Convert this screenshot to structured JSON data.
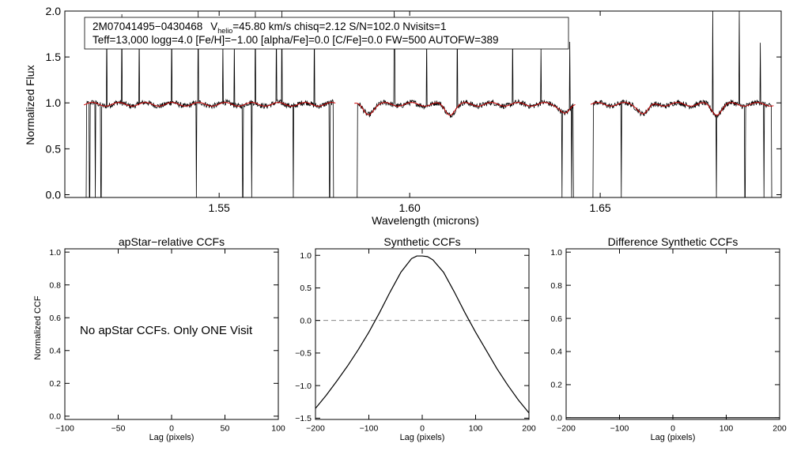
{
  "chart_data": [
    {
      "type": "line",
      "title": "",
      "xlabel": "Wavelength (microns)",
      "ylabel": "Normalized Flux",
      "xlim": [
        1.5095,
        1.6975
      ],
      "ylim": [
        -0.03,
        2.0
      ],
      "x_ticks": [
        1.55,
        1.6,
        1.65
      ],
      "x_tick_labels": [
        "1.55",
        "1.60",
        "1.65"
      ],
      "y_ticks": [
        0.0,
        0.5,
        1.0,
        1.5,
        2.0
      ],
      "y_tick_labels": [
        "0.0",
        "0.5",
        "1.0",
        "1.5",
        "2.0"
      ],
      "chip_ranges": [
        [
          1.5145,
          1.5805
        ],
        [
          1.5855,
          1.6435
        ],
        [
          1.6475,
          1.6955
        ]
      ],
      "series": [
        {
          "name": "observed spectrum",
          "color": "#000000",
          "baseline": 0.98
        },
        {
          "name": "synthetic model",
          "color": "#cc0000",
          "baseline": 0.985
        }
      ],
      "annotation": {
        "star_id": "2M07041495−0430468",
        "v_prefix": "V",
        "v_sub": "helio",
        "v_rest": "=45.80 km/s  chisq=2.12  S/N=102.0  Nvisits=1",
        "line2": "Teff=13,000 logg=4.0 [Fe/H]=−1.00 [alpha/Fe]=0.0 [C/Fe]=0.0 FW=500 AUTOFW=389"
      }
    },
    {
      "type": "line",
      "title": "apStar−relative CCFs",
      "xlabel": "Lag (pixels)",
      "ylabel": "Normalized CCF",
      "xlim": [
        -100,
        100
      ],
      "ylim": [
        -0.02,
        1.02
      ],
      "x_ticks": [
        -100,
        -50,
        0,
        50,
        100
      ],
      "x_tick_labels": [
        "−100",
        "−50",
        "0",
        "50",
        "100"
      ],
      "y_ticks": [
        0.0,
        0.2,
        0.4,
        0.6,
        0.8,
        1.0
      ],
      "y_tick_labels": [
        "0.0",
        "0.2",
        "0.4",
        "0.6",
        "0.8",
        "1.0"
      ],
      "message": "No apStar CCFs.  Only ONE Visit",
      "series": []
    },
    {
      "type": "line",
      "title": "Synthetic CCFs",
      "xlabel": "Lag (pixels)",
      "ylabel": "",
      "xlim": [
        -200,
        200
      ],
      "ylim": [
        -1.52,
        1.1
      ],
      "x_ticks": [
        -200,
        -100,
        0,
        100,
        200
      ],
      "x_tick_labels": [
        "−200",
        "−100",
        "0",
        "100",
        "200"
      ],
      "y_ticks": [
        -1.5,
        -1.0,
        -0.5,
        0.0,
        0.5,
        1.0
      ],
      "y_tick_labels": [
        "−1.5",
        "−1.0",
        "−0.5",
        "0.0",
        "0.5",
        "1.0"
      ],
      "zero_line": 0.0,
      "series": [
        {
          "name": "synthetic CCF",
          "color": "#000000",
          "x": [
            -200,
            -180,
            -160,
            -140,
            -120,
            -100,
            -80,
            -60,
            -40,
            -20,
            -10,
            0,
            10,
            20,
            40,
            60,
            80,
            100,
            120,
            140,
            160,
            180,
            200
          ],
          "y": [
            -1.35,
            -1.15,
            -0.93,
            -0.7,
            -0.45,
            -0.18,
            0.12,
            0.44,
            0.74,
            0.95,
            0.99,
            0.99,
            0.98,
            0.93,
            0.74,
            0.44,
            0.12,
            -0.18,
            -0.46,
            -0.74,
            -0.99,
            -1.22,
            -1.42
          ]
        }
      ]
    },
    {
      "type": "line",
      "title": "Difference Synthetic CCFs",
      "xlabel": "Lag (pixels)",
      "ylabel": "",
      "xlim": [
        -200,
        200
      ],
      "ylim": [
        -0.01,
        1.02
      ],
      "x_ticks": [
        -200,
        -100,
        0,
        100,
        200
      ],
      "x_tick_labels": [
        "−200",
        "−100",
        "0",
        "100",
        "200"
      ],
      "y_ticks": [
        0.0,
        0.2,
        0.4,
        0.6,
        0.8,
        1.0
      ],
      "y_tick_labels": [
        "0.0",
        "0.2",
        "0.4",
        "0.6",
        "0.8",
        "1.0"
      ],
      "series": [
        {
          "name": "difference CCF",
          "color": "#000000",
          "x": [
            -200,
            200
          ],
          "y": [
            0.0,
            0.0
          ]
        }
      ]
    }
  ]
}
